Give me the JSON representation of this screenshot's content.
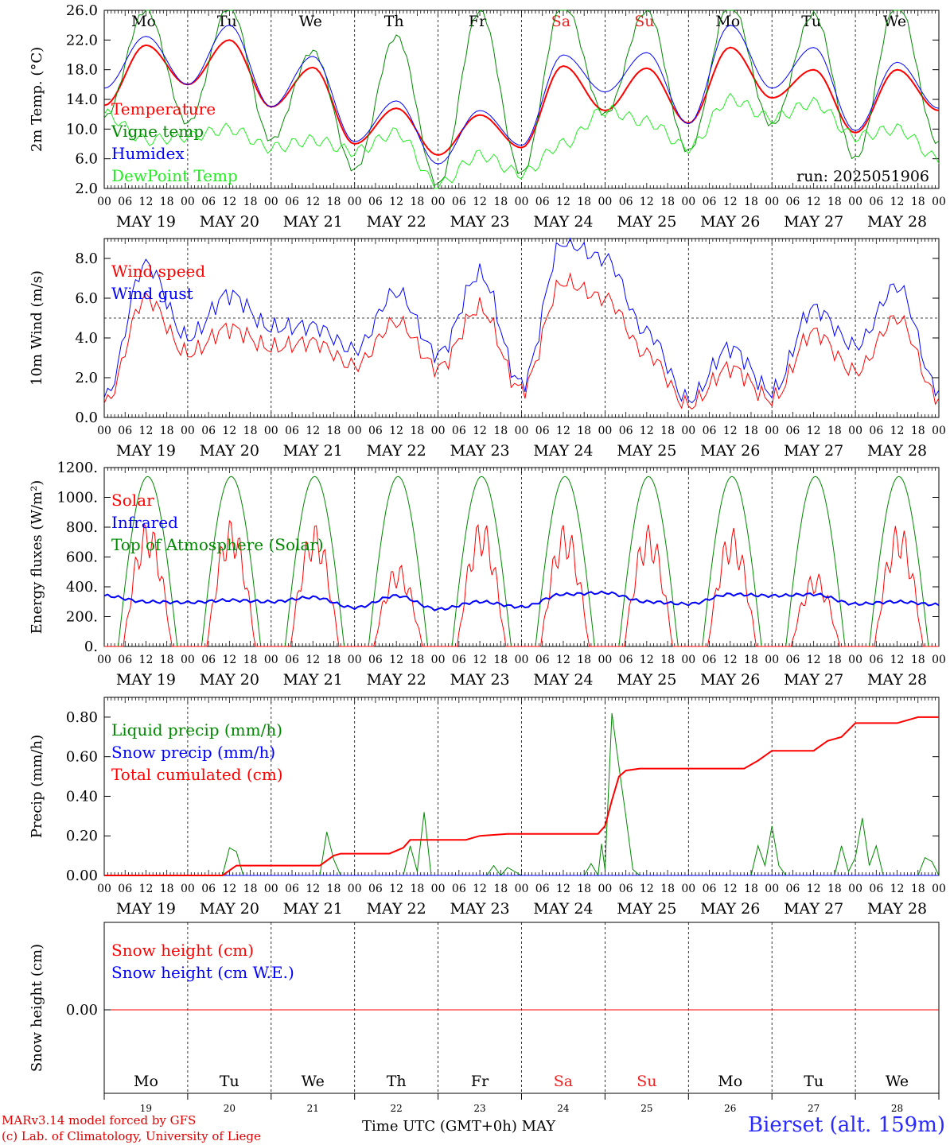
{
  "chart_data": [
    {
      "type": "line",
      "ylabel": "2m Temp. (°C)",
      "ylim": [
        2.0,
        26.0
      ],
      "yticks": [
        "2.0",
        "6.0",
        "10.0",
        "14.0",
        "18.0",
        "22.0",
        "26.0"
      ],
      "x_ticks": [
        "00",
        "06",
        "12",
        "18"
      ],
      "date_labels": [
        "MAY 19",
        "MAY 20",
        "MAY 21",
        "MAY 22",
        "MAY 23",
        "MAY 24",
        "MAY 25",
        "MAY 26",
        "MAY 27",
        "MAY 28"
      ],
      "day_labels": [
        "Mo",
        "Tu",
        "We",
        "Th",
        "Fr",
        "Sa",
        "Su",
        "Mo",
        "Tu",
        "We"
      ],
      "weekend_color": "#ee2222",
      "run_label": "run: 2025051906",
      "x_hours": [
        0,
        12,
        24,
        36,
        48,
        60,
        72,
        84,
        96,
        108,
        120,
        132,
        144,
        156,
        168,
        180,
        192,
        204,
        216,
        228,
        240
      ],
      "series": [
        {
          "name": "Temperature",
          "color": "#ff0000",
          "width": 2,
          "values": [
            13.2,
            21.3,
            16.0,
            22.0,
            13.0,
            18.3,
            8.0,
            12.8,
            6.5,
            11.9,
            7.5,
            18.5,
            12.5,
            18.2,
            10.8,
            21.0,
            14.2,
            18.0,
            9.5,
            18.0,
            12.5
          ]
        },
        {
          "name": "Vigne temp",
          "color": "#008800",
          "width": 1,
          "values": [
            11.5,
            26.0,
            10.8,
            26.5,
            8.5,
            20.5,
            4.5,
            22.5,
            2.5,
            26.0,
            4.0,
            27.0,
            12.0,
            26.0,
            7.0,
            27.0,
            10.5,
            25.5,
            6.0,
            27.0,
            8.0
          ]
        },
        {
          "name": "Humidex",
          "color": "#0000ff",
          "width": 1,
          "values": [
            15.5,
            22.5,
            16.0,
            24.0,
            13.0,
            19.8,
            8.3,
            13.8,
            5.3,
            12.5,
            7.8,
            20.0,
            15.0,
            20.3,
            10.7,
            24.0,
            15.5,
            21.0,
            9.8,
            19.0,
            12.8
          ]
        },
        {
          "name": "DewPoint Temp",
          "color": "#22ee22",
          "width": 1,
          "values": [
            12.0,
            8.5,
            9.0,
            10.0,
            7.5,
            8.5,
            7.0,
            9.5,
            2.5,
            6.5,
            4.0,
            8.0,
            12.5,
            11.0,
            7.5,
            14.0,
            11.5,
            13.5,
            9.0,
            10.0,
            6.0
          ]
        }
      ]
    },
    {
      "type": "line",
      "ylabel": "10m Wind (m/s)",
      "ylim": [
        0.0,
        9.0
      ],
      "yticks": [
        "0.0",
        "2.0",
        "4.0",
        "6.0",
        "8.0"
      ],
      "reference_line": 5.0,
      "x_ticks": [
        "00",
        "06",
        "12",
        "18"
      ],
      "date_labels": [
        "MAY 19",
        "MAY 20",
        "MAY 21",
        "MAY 22",
        "MAY 23",
        "MAY 24",
        "MAY 25",
        "MAY 26",
        "MAY 27",
        "MAY 28"
      ],
      "x_hours": [
        0,
        12,
        24,
        36,
        48,
        60,
        72,
        84,
        96,
        108,
        120,
        132,
        144,
        156,
        168,
        180,
        192,
        204,
        216,
        228,
        240
      ],
      "series": [
        {
          "name": "Wind speed",
          "color": "#ff0000",
          "width": 1,
          "values": [
            0.7,
            6.0,
            3.2,
            4.5,
            3.5,
            3.8,
            2.6,
            4.8,
            2.5,
            5.5,
            1.4,
            6.8,
            6.0,
            3.2,
            0.6,
            2.5,
            0.9,
            4.3,
            2.3,
            5.0,
            1.0
          ]
        },
        {
          "name": "Wind gust",
          "color": "#0000ff",
          "width": 1,
          "values": [
            1.0,
            7.7,
            4.0,
            6.2,
            4.5,
            4.6,
            3.4,
            6.3,
            3.2,
            7.2,
            1.7,
            8.8,
            8.0,
            4.3,
            0.9,
            3.5,
            1.3,
            5.5,
            3.6,
            6.6,
            1.4
          ]
        }
      ]
    },
    {
      "type": "line",
      "ylabel": "Energy fluxes (W/m²)",
      "ylim": [
        0,
        1200
      ],
      "yticks": [
        "0.",
        "200.",
        "400.",
        "600.",
        "800.",
        "1000.",
        "1200."
      ],
      "x_ticks": [
        "00",
        "06",
        "12",
        "18"
      ],
      "date_labels": [
        "MAY 19",
        "MAY 20",
        "MAY 21",
        "MAY 22",
        "MAY 23",
        "MAY 24",
        "MAY 25",
        "MAY 26",
        "MAY 27",
        "MAY 28"
      ],
      "solar_peaks": [
        850,
        860,
        830,
        560,
        860,
        830,
        820,
        800,
        500,
        830
      ],
      "toa_peak": 1140,
      "series": [
        {
          "name": "Solar",
          "color": "#ff0000",
          "width": 1,
          "values": [
            0,
            850,
            0,
            860,
            0,
            830,
            0,
            560,
            0,
            860,
            0,
            830,
            0,
            820,
            0,
            800,
            0,
            500,
            0,
            830,
            0
          ]
        },
        {
          "name": "Infrared",
          "color": "#0000ff",
          "width": 2,
          "values": [
            340,
            300,
            295,
            310,
            300,
            330,
            260,
            340,
            250,
            300,
            265,
            350,
            360,
            300,
            285,
            350,
            340,
            350,
            285,
            300,
            280
          ]
        },
        {
          "name": "Top of Atmosphere (Solar)",
          "color": "#008800",
          "width": 1,
          "values": [
            0,
            1140,
            0,
            1140,
            0,
            1140,
            0,
            1140,
            0,
            1140,
            0,
            1140,
            0,
            1140,
            0,
            1140,
            0,
            1140,
            0,
            1140,
            0
          ]
        }
      ]
    },
    {
      "type": "line",
      "ylabel": "Precip (mm/h)",
      "ylim": [
        0.0,
        0.9
      ],
      "yticks": [
        "0.00",
        "0.20",
        "0.40",
        "0.60",
        "0.80"
      ],
      "x_ticks": [
        "00",
        "06",
        "12",
        "18"
      ],
      "date_labels": [
        "MAY 19",
        "MAY 20",
        "MAY 21",
        "MAY 22",
        "MAY 23",
        "MAY 24",
        "MAY 25",
        "MAY 26",
        "MAY 27",
        "MAY 28"
      ],
      "series": [
        {
          "name": "Liquid precip (mm/h)",
          "color": "#008800",
          "width": 1,
          "points": [
            [
              0,
              0
            ],
            [
              34,
              0
            ],
            [
              36,
              0.14
            ],
            [
              38,
              0.12
            ],
            [
              40,
              0
            ],
            [
              62,
              0
            ],
            [
              64,
              0.22
            ],
            [
              66,
              0.08
            ],
            [
              68,
              0
            ],
            [
              86,
              0
            ],
            [
              88,
              0.15
            ],
            [
              90,
              0.02
            ],
            [
              92,
              0.32
            ],
            [
              94,
              0
            ],
            [
              110,
              0
            ],
            [
              112,
              0.05
            ],
            [
              114,
              0
            ],
            [
              116,
              0.04
            ],
            [
              118,
              0.02
            ],
            [
              120,
              0
            ],
            [
              138,
              0
            ],
            [
              140,
              0.06
            ],
            [
              142,
              0
            ],
            [
              143,
              0.16
            ],
            [
              144,
              0.03
            ],
            [
              146,
              0.82
            ],
            [
              148,
              0.55
            ],
            [
              150,
              0.3
            ],
            [
              152,
              0.03
            ],
            [
              154,
              0
            ],
            [
              186,
              0
            ],
            [
              188,
              0.15
            ],
            [
              190,
              0.05
            ],
            [
              192,
              0.25
            ],
            [
              194,
              0.05
            ],
            [
              196,
              0
            ],
            [
              210,
              0
            ],
            [
              212,
              0.15
            ],
            [
              214,
              0.02
            ],
            [
              216,
              0.09
            ],
            [
              218,
              0.29
            ],
            [
              220,
              0.05
            ],
            [
              222,
              0.15
            ],
            [
              224,
              0
            ],
            [
              234,
              0
            ],
            [
              236,
              0.09
            ],
            [
              238,
              0.07
            ],
            [
              240,
              0
            ]
          ]
        },
        {
          "name": "Snow precip (mm/h)",
          "color": "#0000ff",
          "width": 1,
          "points": [
            [
              0,
              0
            ],
            [
              240,
              0
            ]
          ]
        },
        {
          "name": "Total cumulated (cm)",
          "color": "#ff0000",
          "width": 2,
          "points": [
            [
              0,
              0
            ],
            [
              34,
              0
            ],
            [
              38,
              0.05
            ],
            [
              62,
              0.05
            ],
            [
              66,
              0.1
            ],
            [
              68,
              0.11
            ],
            [
              82,
              0.11
            ],
            [
              86,
              0.14
            ],
            [
              88,
              0.18
            ],
            [
              104,
              0.18
            ],
            [
              108,
              0.2
            ],
            [
              116,
              0.21
            ],
            [
              142,
              0.21
            ],
            [
              144,
              0.25
            ],
            [
              146,
              0.38
            ],
            [
              148,
              0.5
            ],
            [
              150,
              0.53
            ],
            [
              154,
              0.54
            ],
            [
              184,
              0.54
            ],
            [
              188,
              0.58
            ],
            [
              192,
              0.63
            ],
            [
              204,
              0.63
            ],
            [
              208,
              0.68
            ],
            [
              212,
              0.7
            ],
            [
              216,
              0.77
            ],
            [
              228,
              0.77
            ],
            [
              234,
              0.8
            ],
            [
              240,
              0.8
            ]
          ]
        }
      ]
    },
    {
      "type": "line",
      "ylabel": "Snow height (cm)",
      "yticks": [
        "0.00"
      ],
      "day_labels": [
        "Mo",
        "Tu",
        "We",
        "Th",
        "Fr",
        "Sa",
        "Su",
        "Mo",
        "Tu",
        "We"
      ],
      "date_numbers": [
        "19",
        "20",
        "21",
        "22",
        "23",
        "24",
        "25",
        "26",
        "27",
        "28"
      ],
      "series": [
        {
          "name": "Snow height (cm)",
          "color": "#ff0000",
          "width": 1,
          "values": [
            0,
            0
          ]
        },
        {
          "name": "Snow height (cm W.E.)",
          "color": "#0000ff",
          "width": 1,
          "values": [
            0,
            0
          ]
        }
      ]
    }
  ],
  "footer": {
    "credit_line1": "MARv3.14 model forced by GFS",
    "credit_line2": "(c) Lab. of Climatology, University of Liege",
    "xaxis_title": "Time UTC (GMT+0h) MAY",
    "station": "Bierset (alt. 159m)"
  }
}
